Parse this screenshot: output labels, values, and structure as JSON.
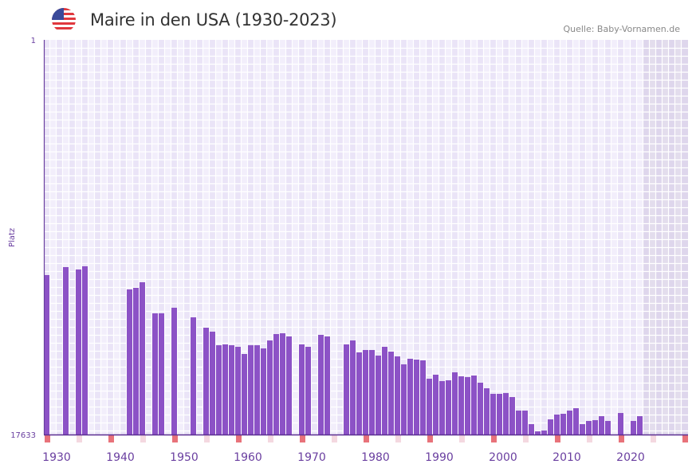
{
  "header": {
    "title": "Maire in den USA (1930-2023)",
    "source": "Quelle: Baby-Vornamen.de",
    "flag_icon": "us-flag-icon"
  },
  "chart_data": {
    "type": "bar",
    "title": "Maire in den USA (1930-2023)",
    "xlabel": "",
    "ylabel": "Platz",
    "y_reversed": true,
    "ylim": [
      1,
      17633
    ],
    "yticks": [
      "1",
      "17633"
    ],
    "xlim": [
      1930,
      2030
    ],
    "xticks": [
      "1930",
      "1940",
      "1950",
      "1960",
      "1970",
      "1980",
      "1990",
      "2000",
      "2010",
      "2020"
    ],
    "bar_color": "#8c52c6",
    "x": [
      1930,
      1931,
      1932,
      1933,
      1934,
      1935,
      1936,
      1937,
      1938,
      1939,
      1940,
      1941,
      1942,
      1943,
      1944,
      1945,
      1946,
      1947,
      1948,
      1949,
      1950,
      1951,
      1952,
      1953,
      1954,
      1955,
      1956,
      1957,
      1958,
      1959,
      1960,
      1961,
      1962,
      1963,
      1964,
      1965,
      1966,
      1967,
      1968,
      1969,
      1970,
      1971,
      1972,
      1973,
      1974,
      1975,
      1976,
      1977,
      1978,
      1979,
      1980,
      1981,
      1982,
      1983,
      1984,
      1985,
      1986,
      1987,
      1988,
      1989,
      1990,
      1991,
      1992,
      1993,
      1994,
      1995,
      1996,
      1997,
      1998,
      1999,
      2000,
      2001,
      2002,
      2003,
      2004,
      2005,
      2006,
      2007,
      2008,
      2009,
      2010,
      2011,
      2012,
      2013,
      2014,
      2015,
      2016,
      2017,
      2018,
      2019,
      2020,
      2021,
      2022,
      2023
    ],
    "values": [
      10509,
      null,
      null,
      10153,
      null,
      10260,
      10117,
      null,
      null,
      null,
      null,
      null,
      null,
      11150,
      11079,
      10830,
      null,
      12219,
      12219,
      null,
      11969,
      null,
      null,
      12397,
      null,
      12860,
      13038,
      13644,
      13608,
      13644,
      13715,
      14035,
      13644,
      13644,
      13786,
      13430,
      13145,
      13109,
      13252,
      null,
      13608,
      13715,
      null,
      13180,
      13252,
      null,
      null,
      13608,
      13430,
      13964,
      13857,
      13857,
      14107,
      13715,
      13929,
      14142,
      14498,
      14249,
      14285,
      14320,
      15140,
      14961,
      15246,
      15211,
      14855,
      15033,
      15068,
      14997,
      15318,
      15567,
      15816,
      15816,
      15781,
      15959,
      16564,
      16564,
      17170,
      17491,
      17455,
      16956,
      16742,
      16707,
      16564,
      16458,
      17170,
      17027,
      16992,
      16814,
      17027,
      null,
      16671,
      null,
      17027,
      16814
    ]
  }
}
